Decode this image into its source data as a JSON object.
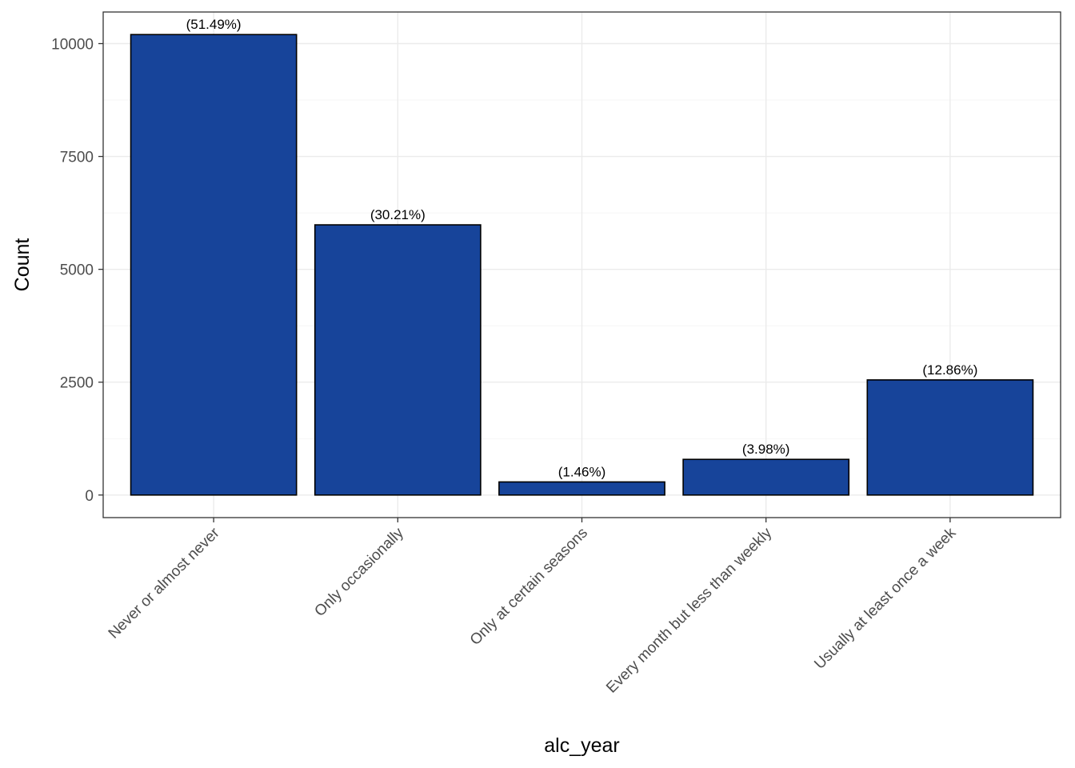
{
  "chart_data": {
    "type": "bar",
    "categories": [
      "Never or almost never",
      "Only occasionally",
      "Only at certain seasons",
      "Every month but less than weekly",
      "Usually at least once a week"
    ],
    "values": [
      10200,
      5985,
      290,
      790,
      2550
    ],
    "labels": [
      "(51.49%)",
      "(30.21%)",
      "(1.46%)",
      "(3.98%)",
      "(12.86%)"
    ],
    "xlabel": "alc_year",
    "ylabel": "Count",
    "ylim": [
      -500,
      10700
    ],
    "yticks": [
      0,
      2500,
      5000,
      7500,
      10000
    ],
    "yticklabels": [
      "0",
      "2500",
      "5000",
      "7500",
      "10000"
    ],
    "grid": true,
    "bar_color": "#17449a",
    "bar_outline": "#000000"
  }
}
